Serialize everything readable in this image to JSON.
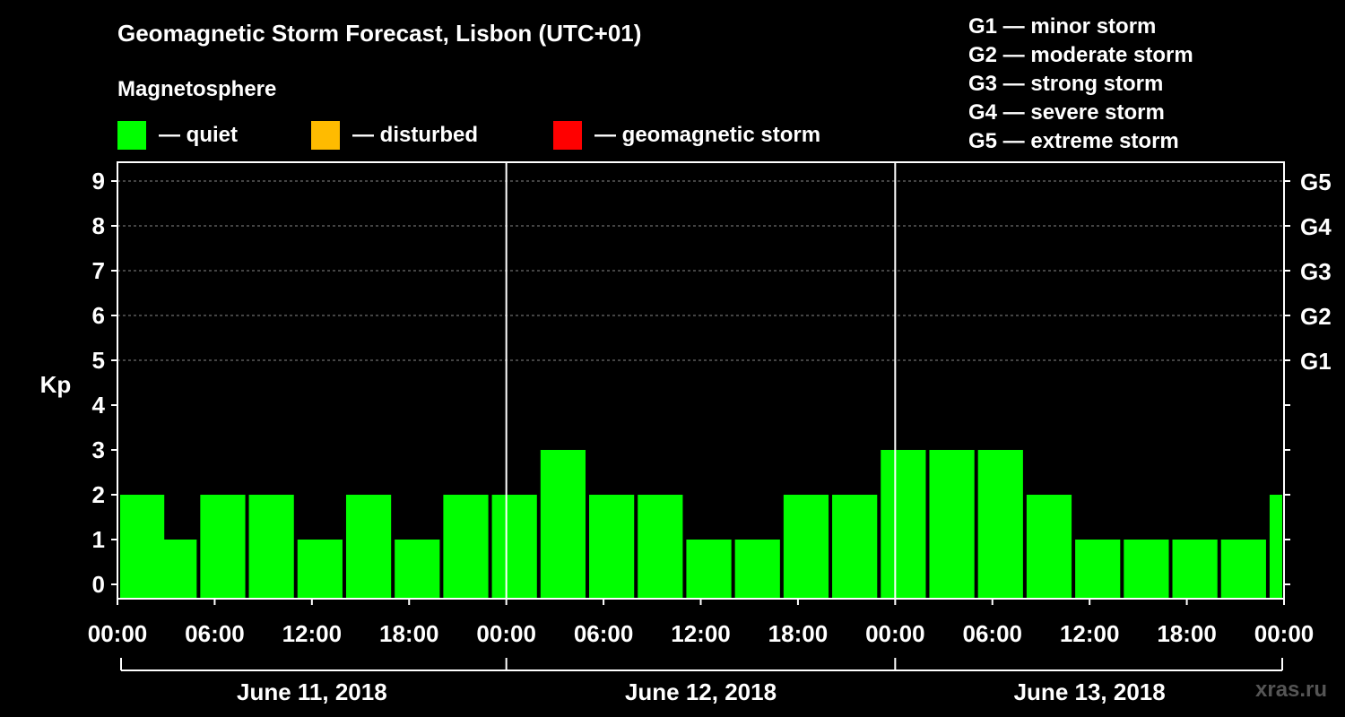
{
  "header": {
    "title": "Geomagnetic Storm Forecast, Lisbon (UTC+01)",
    "subtitle": "Magnetosphere"
  },
  "legend": [
    {
      "label": "— quiet",
      "color": "#00ff00"
    },
    {
      "label": "— disturbed",
      "color": "#ffbb00"
    },
    {
      "label": "— geomagnetic storm",
      "color": "#ff0000"
    }
  ],
  "storm_scale": [
    "G1 — minor storm",
    "G2 — moderate storm",
    "G3 — strong storm",
    "G4 — severe storm",
    "G5 — extreme storm"
  ],
  "watermark": "xras.ru",
  "chart_data": {
    "type": "bar",
    "title": "Geomagnetic Storm Forecast, Lisbon (UTC+01)",
    "ylabel": "Kp",
    "ylim": [
      0,
      9
    ],
    "yticks": [
      "0",
      "1",
      "2",
      "3",
      "4",
      "5",
      "6",
      "7",
      "8",
      "9"
    ],
    "right_ticks": [
      {
        "value": 5,
        "label": "G1"
      },
      {
        "value": 6,
        "label": "G2"
      },
      {
        "value": 7,
        "label": "G3"
      },
      {
        "value": 8,
        "label": "G4"
      },
      {
        "value": 9,
        "label": "G5"
      }
    ],
    "x_tick_labels": [
      "00:00",
      "06:00",
      "12:00",
      "18:00",
      "00:00",
      "06:00",
      "12:00",
      "18:00",
      "00:00",
      "06:00",
      "12:00",
      "18:00",
      "00:00"
    ],
    "days": [
      "June 11, 2018",
      "June 12, 2018",
      "June 13, 2018"
    ],
    "interval_hours": 3,
    "bar_start_hours": [
      0,
      2,
      5,
      8,
      11,
      14,
      17,
      20,
      23,
      26,
      29,
      32,
      35,
      38,
      41,
      44,
      47,
      50,
      53,
      56,
      59,
      62,
      65,
      68,
      71
    ],
    "values": [
      2,
      1,
      2,
      2,
      1,
      2,
      1,
      2,
      2,
      3,
      2,
      2,
      1,
      1,
      2,
      2,
      3,
      3,
      3,
      2,
      1,
      1,
      1,
      1,
      2
    ],
    "status": [
      "quiet",
      "quiet",
      "quiet",
      "quiet",
      "quiet",
      "quiet",
      "quiet",
      "quiet",
      "quiet",
      "quiet",
      "quiet",
      "quiet",
      "quiet",
      "quiet",
      "quiet",
      "quiet",
      "quiet",
      "quiet",
      "quiet",
      "quiet",
      "quiet",
      "quiet",
      "quiet",
      "quiet",
      "quiet"
    ]
  }
}
